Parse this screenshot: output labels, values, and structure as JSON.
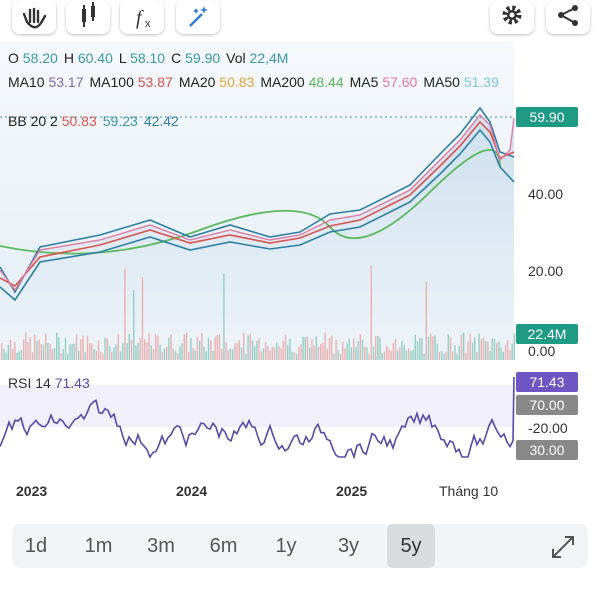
{
  "legend": {
    "ohlc": [
      {
        "label": "O",
        "value": "58.20"
      },
      {
        "label": "H",
        "value": "60.40"
      },
      {
        "label": "L",
        "value": "58.10"
      },
      {
        "label": "C",
        "value": "59.90"
      },
      {
        "label": "Vol",
        "value": "22,4M"
      }
    ],
    "mas": [
      {
        "label": "MA10",
        "value": "53.17",
        "color": "#7b6bb0"
      },
      {
        "label": "MA100",
        "value": "53.87",
        "color": "#d9534f"
      },
      {
        "label": "MA20",
        "value": "50.83",
        "color": "#e6a23c"
      },
      {
        "label": "MA200",
        "value": "48.44",
        "color": "#5cb85c"
      },
      {
        "label": "MA5",
        "value": "57.60",
        "color": "#e07aa0"
      },
      {
        "label": "MA50",
        "value": "51.39",
        "color": "#7ec8e3"
      }
    ],
    "bb": {
      "label": "BB 20 2",
      "values": [
        {
          "value": "50.83",
          "color": "#d9534f"
        },
        {
          "value": "59.23",
          "color": "#3a9aa8"
        },
        {
          "value": "42.42",
          "color": "#2e7fa3"
        }
      ]
    }
  },
  "price_axis": {
    "last": "59.90",
    "ticks": [
      "40.00",
      "20.00"
    ],
    "volume_last": "22.4M",
    "volume_zero": "0.00"
  },
  "rsi": {
    "label": "RSI 14",
    "value": "71.43",
    "levels": [
      "70.00",
      "-20.00",
      "30.00"
    ]
  },
  "time_axis": [
    "2023",
    "2024",
    "2025",
    "Tháng 10"
  ],
  "periods": {
    "options": [
      "1d",
      "1m",
      "3m",
      "6m",
      "1y",
      "3y",
      "5y"
    ],
    "selected": 6
  }
}
